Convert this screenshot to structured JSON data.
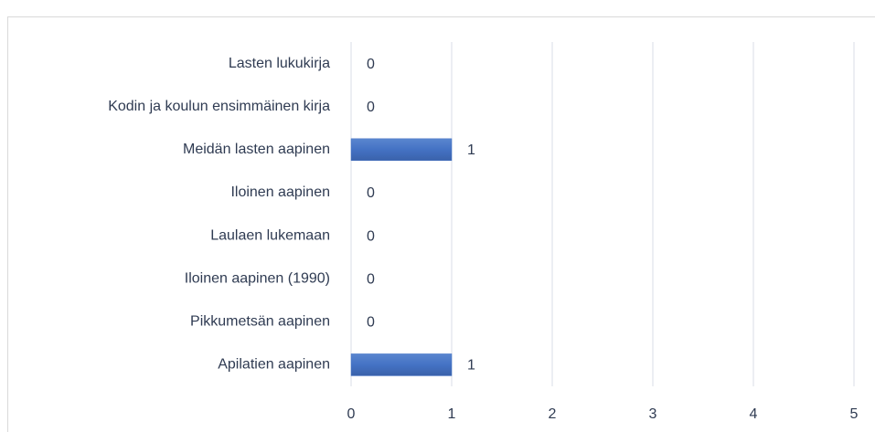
{
  "chart_data": {
    "type": "bar",
    "orientation": "horizontal",
    "categories": [
      "Lasten lukukirja",
      "Kodin ja koulun ensimmäinen kirja",
      "Meidän lasten aapinen",
      "Iloinen aapinen",
      "Laulaen lukemaan",
      "Iloinen aapinen (1990)",
      "Pikkumetsän aapinen",
      "Apilatien aapinen"
    ],
    "values": [
      0,
      0,
      1,
      0,
      0,
      0,
      0,
      1
    ],
    "color": "#4472c4",
    "xlim": [
      0,
      5
    ],
    "xticks": [
      0,
      1,
      2,
      3,
      4,
      5
    ],
    "grid": true
  }
}
